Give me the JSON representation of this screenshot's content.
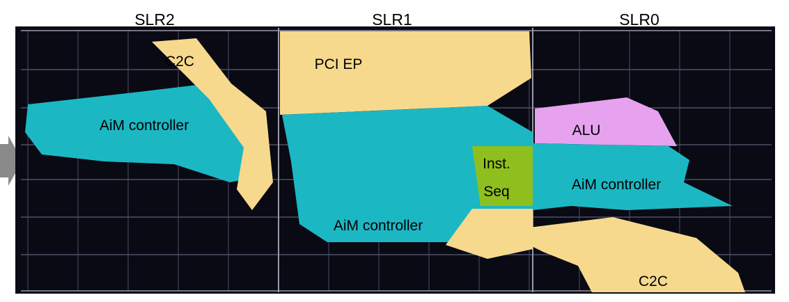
{
  "slrs": [
    {
      "label": "SLR2"
    },
    {
      "label": "SLR1"
    },
    {
      "label": "SLR0"
    }
  ],
  "regions": [
    {
      "label": "C2C"
    },
    {
      "label": "PCI EP"
    },
    {
      "label": "AiM controller"
    },
    {
      "label": "ALU"
    },
    {
      "lines": [
        "Inst.",
        "Seq"
      ]
    },
    {
      "label": "AiM controller"
    },
    {
      "label": "AiM controller"
    },
    {
      "label": "C2C"
    }
  ]
}
